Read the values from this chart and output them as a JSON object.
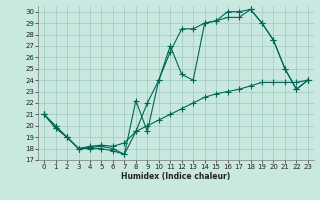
{
  "xlabel": "Humidex (Indice chaleur)",
  "bg_color": "#c8e8e0",
  "plot_bg_color": "#c8e8e0",
  "grid_color": "#a0c8c0",
  "line_color": "#006655",
  "xlim": [
    -0.5,
    23.5
  ],
  "ylim": [
    17,
    30.5
  ],
  "yticks": [
    17,
    18,
    19,
    20,
    21,
    22,
    23,
    24,
    25,
    26,
    27,
    28,
    29,
    30
  ],
  "xticks": [
    0,
    1,
    2,
    3,
    4,
    5,
    6,
    7,
    8,
    9,
    10,
    11,
    12,
    13,
    14,
    15,
    16,
    17,
    18,
    19,
    20,
    21,
    22,
    23
  ],
  "line1_x": [
    0,
    1,
    2,
    3,
    4,
    5,
    6,
    7,
    8,
    9,
    10,
    11,
    12,
    13,
    14,
    15,
    16,
    17,
    18,
    19,
    20,
    21,
    22,
    23
  ],
  "line1_y": [
    21.0,
    20.0,
    19.0,
    18.0,
    18.0,
    18.0,
    17.8,
    17.5,
    19.5,
    22.0,
    24.0,
    26.5,
    28.5,
    28.5,
    29.0,
    29.2,
    30.0,
    30.0,
    30.2,
    29.0,
    27.5,
    25.0,
    23.2,
    24.0
  ],
  "line2_x": [
    0,
    1,
    2,
    3,
    4,
    5,
    6,
    7,
    8,
    9,
    10,
    11,
    12,
    13,
    14,
    15,
    16,
    17,
    18,
    19,
    20,
    21,
    22,
    23
  ],
  "line2_y": [
    21.0,
    19.8,
    19.0,
    18.0,
    18.1,
    18.2,
    18.0,
    17.5,
    22.2,
    19.5,
    24.0,
    27.0,
    24.5,
    24.0,
    29.0,
    29.2,
    29.5,
    29.5,
    30.2,
    29.0,
    27.5,
    25.0,
    23.2,
    24.0
  ],
  "line3_x": [
    0,
    1,
    2,
    3,
    4,
    5,
    6,
    7,
    8,
    9,
    10,
    11,
    12,
    13,
    14,
    15,
    16,
    17,
    18,
    19,
    20,
    21,
    22,
    23
  ],
  "line3_y": [
    21.0,
    19.8,
    19.0,
    18.0,
    18.2,
    18.3,
    18.2,
    18.5,
    19.5,
    20.0,
    20.5,
    21.0,
    21.5,
    22.0,
    22.5,
    22.8,
    23.0,
    23.2,
    23.5,
    23.8,
    23.8,
    23.8,
    23.8,
    24.0
  ],
  "marker_size": 2.0,
  "line_width": 0.8,
  "tick_labelsize": 5,
  "xlabel_fontsize": 5.5
}
